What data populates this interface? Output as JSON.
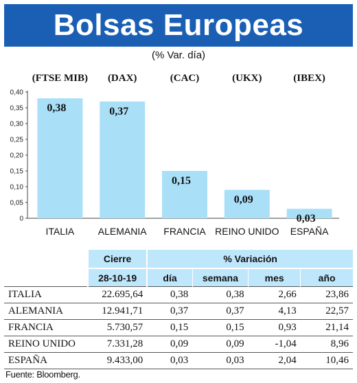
{
  "title": "Bolsas Europeas",
  "subtitle": "(% Var. día)",
  "chart_data": {
    "type": "bar",
    "categories": [
      "ITALIA",
      "ALEMANIA",
      "FRANCIA",
      "REINO UNIDO",
      "ESPAÑA"
    ],
    "codes": [
      "(FTSE MIB)",
      "(DAX)",
      "(CAC)",
      "(UKX)",
      "(IBEX)"
    ],
    "values": [
      0.38,
      0.37,
      0.15,
      0.09,
      0.03
    ],
    "value_labels": [
      "0,38",
      "0,37",
      "0,15",
      "0,09",
      "0,03"
    ],
    "ylim": [
      0,
      0.4
    ],
    "yticks": [
      "0",
      "0,05",
      "0,10",
      "0,15",
      "0,20",
      "0,25",
      "0,30",
      "0,35",
      "0,40"
    ],
    "bar_color": "#a9e0f8",
    "grid": false
  },
  "table": {
    "header": {
      "cierre": "Cierre",
      "variacion": "% Variación",
      "fecha": "28-10-19",
      "dia": "día",
      "semana": "semana",
      "mes": "mes",
      "ano": "año"
    },
    "rows": [
      {
        "name": "ITALIA",
        "cierre": "22.695,64",
        "dia": "0,38",
        "semana": "0,38",
        "mes": "2,66",
        "ano": "23,86"
      },
      {
        "name": "ALEMANIA",
        "cierre": "12.941,71",
        "dia": "0,37",
        "semana": "0,37",
        "mes": "4,13",
        "ano": "22,57"
      },
      {
        "name": "FRANCIA",
        "cierre": "5.730,57",
        "dia": "0,15",
        "semana": "0,15",
        "mes": "0,93",
        "ano": "21,14"
      },
      {
        "name": "REINO UNIDO",
        "cierre": "7.331,28",
        "dia": "0,09",
        "semana": "0,09",
        "mes": "-1,04",
        "ano": "8,96"
      },
      {
        "name": "ESPAÑA",
        "cierre": "9.433,00",
        "dia": "0,03",
        "semana": "0,03",
        "mes": "2,04",
        "ano": "10,46"
      }
    ]
  },
  "source": "Fuente: Bloomberg."
}
